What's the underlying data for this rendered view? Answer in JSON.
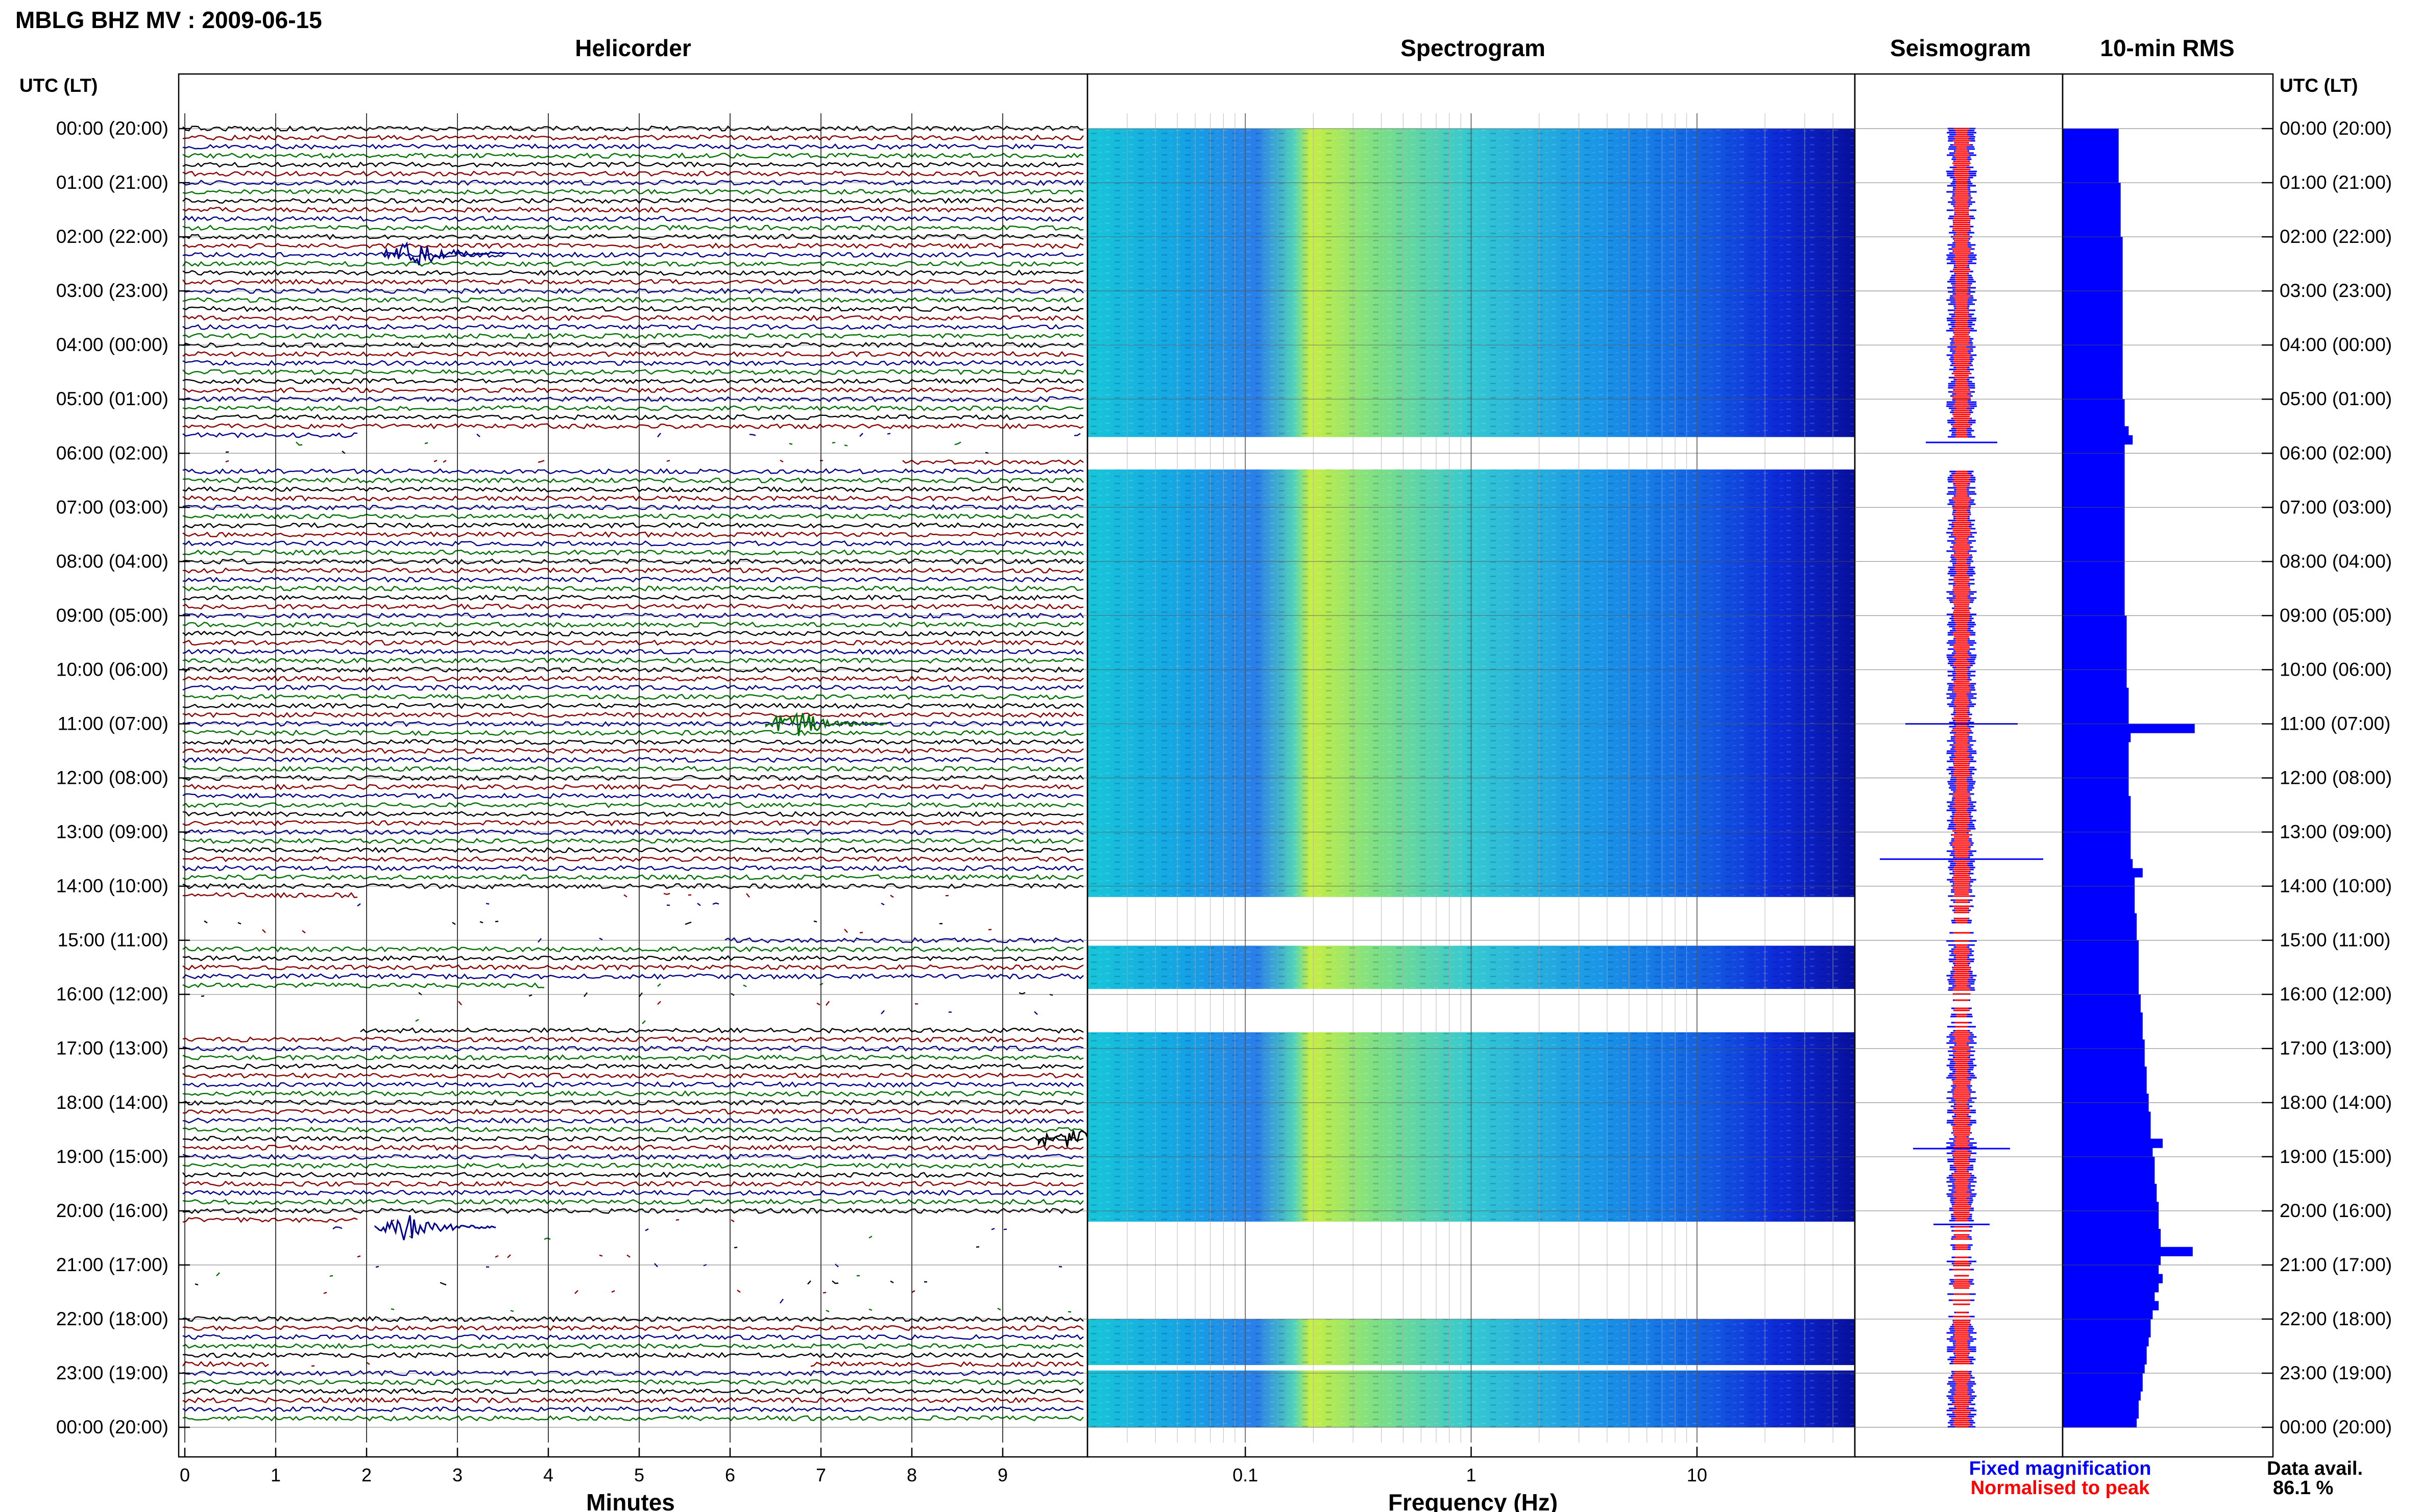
{
  "title": "MBLG BHZ MV : 2009-06-15",
  "panels": {
    "helicorder": "Helicorder",
    "spectrogram": "Spectrogram",
    "seismogram": "Seismogram",
    "rms": "10-min RMS"
  },
  "y_axis_label": "UTC (LT)",
  "time_labels": [
    "00:00 (20:00)",
    "01:00 (21:00)",
    "02:00 (22:00)",
    "03:00 (23:00)",
    "04:00 (00:00)",
    "05:00 (01:00)",
    "06:00 (02:00)",
    "07:00 (03:00)",
    "08:00 (04:00)",
    "09:00 (05:00)",
    "10:00 (06:00)",
    "11:00 (07:00)",
    "12:00 (08:00)",
    "13:00 (09:00)",
    "14:00 (10:00)",
    "15:00 (11:00)",
    "16:00 (12:00)",
    "17:00 (13:00)",
    "18:00 (14:00)",
    "19:00 (15:00)",
    "20:00 (16:00)",
    "21:00 (17:00)",
    "22:00 (18:00)",
    "23:00 (19:00)",
    "00:00 (20:00)"
  ],
  "helicorder_xaxis": {
    "label": "Minutes",
    "ticks": [
      "0",
      "1",
      "2",
      "3",
      "4",
      "5",
      "6",
      "7",
      "8",
      "9"
    ]
  },
  "spectrogram_xaxis": {
    "label": "Frequency (Hz)",
    "ticks": [
      "0.1",
      "1",
      "10"
    ]
  },
  "legend": {
    "fixed": "Fixed magnification",
    "normalised": "Normalised to peak"
  },
  "availability": {
    "label": "Data avail.",
    "value": "86.1 %"
  },
  "colors": {
    "trace": [
      "#000000",
      "#8b0000",
      "#00008b",
      "#007000"
    ],
    "fixed": "#0000ff",
    "normalised": "#ff0000",
    "rms": "#0000ff"
  },
  "chart_data": {
    "type": "helicorder",
    "rows_per_hour": 6,
    "x_minutes_range": [
      0,
      10
    ],
    "freq_range_hz": [
      0.02,
      50
    ],
    "freq_scale": "log",
    "gaps_hours": [
      [
        5.7,
        6.3
      ],
      [
        14.2,
        15.1
      ],
      [
        15.9,
        16.7
      ],
      [
        20.2,
        20.7
      ],
      [
        20.7,
        22.0
      ],
      [
        22.85,
        22.95
      ]
    ],
    "events": [
      {
        "hour": 11.0,
        "minute": 6.8,
        "color": "green"
      },
      {
        "hour": 20.3,
        "minute": 2.5,
        "color": "blue"
      },
      {
        "hour": 18.7,
        "minute": 9.8,
        "color": "black"
      },
      {
        "hour": 2.3,
        "minute": 2.6,
        "color": "blue"
      }
    ],
    "rms_per_10min": [
      0.28,
      0.28,
      0.28,
      0.28,
      0.28,
      0.28,
      0.29,
      0.29,
      0.29,
      0.29,
      0.29,
      0.29,
      0.3,
      0.3,
      0.3,
      0.3,
      0.3,
      0.3,
      0.3,
      0.3,
      0.3,
      0.3,
      0.3,
      0.3,
      0.3,
      0.3,
      0.3,
      0.3,
      0.3,
      0.3,
      0.31,
      0.31,
      0.31,
      0.33,
      0.35,
      0.31,
      0.31,
      0.31,
      0.31,
      0.31,
      0.31,
      0.31,
      0.31,
      0.31,
      0.31,
      0.31,
      0.31,
      0.31,
      0.31,
      0.31,
      0.31,
      0.31,
      0.31,
      0.31,
      0.32,
      0.32,
      0.32,
      0.32,
      0.32,
      0.32,
      0.32,
      0.32,
      0.33,
      0.33,
      0.33,
      0.33,
      0.66,
      0.34,
      0.33,
      0.33,
      0.33,
      0.33,
      0.33,
      0.33,
      0.34,
      0.34,
      0.34,
      0.34,
      0.34,
      0.34,
      0.34,
      0.35,
      0.4,
      0.36,
      0.36,
      0.36,
      0.36,
      0.37,
      0.37,
      0.37,
      0.38,
      0.38,
      0.38,
      0.38,
      0.38,
      0.38,
      0.39,
      0.39,
      0.4,
      0.4,
      0.4,
      0.41,
      0.41,
      0.41,
      0.42,
      0.42,
      0.42,
      0.43,
      0.43,
      0.44,
      0.44,
      0.44,
      0.5,
      0.45,
      0.46,
      0.46,
      0.46,
      0.47,
      0.47,
      0.48,
      0.48,
      0.48,
      0.49,
      0.49,
      0.65,
      0.49,
      0.48,
      0.5,
      0.48,
      0.46,
      0.48,
      0.45,
      0.44,
      0.44,
      0.43,
      0.42,
      0.42,
      0.41,
      0.4,
      0.4,
      0.39,
      0.38,
      0.38,
      0.37
    ]
  }
}
